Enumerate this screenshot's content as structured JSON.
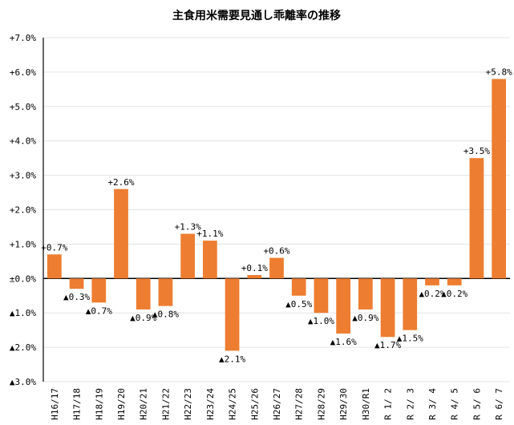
{
  "chart_data": {
    "type": "bar",
    "title": "主食用米需要見通し乖離率の推移",
    "xlabel": "",
    "ylabel": "",
    "ylim": [
      -3.0,
      7.0
    ],
    "yticks": [
      7,
      6,
      5,
      4,
      3,
      2,
      1,
      0,
      -1,
      -2,
      -3
    ],
    "ytick_labels": [
      "+7.0%",
      "+6.0%",
      "+5.0%",
      "+4.0%",
      "+3.0%",
      "+2.0%",
      "+1.0%",
      "±0.0%",
      "▲1.0%",
      "▲2.0%",
      "▲3.0%"
    ],
    "grid": true,
    "categories": [
      "H16/17",
      "H17/18",
      "H18/19",
      "H19/20",
      "H20/21",
      "H21/22",
      "H22/23",
      "H23/24",
      "H24/25",
      "H25/26",
      "H26/27",
      "H27/28",
      "H28/29",
      "H29/30",
      "H30/R1",
      "R 1/ 2",
      "R 2/ 3",
      "R 3/ 4",
      "R 4/ 5",
      "R 5/ 6",
      "R 6/ 7"
    ],
    "values": [
      0.7,
      -0.3,
      -0.7,
      2.6,
      -0.9,
      -0.8,
      1.3,
      1.1,
      -2.1,
      0.1,
      0.6,
      -0.5,
      -1.0,
      -1.6,
      -0.9,
      -1.7,
      -1.5,
      -0.2,
      -0.2,
      3.5,
      5.8
    ],
    "data_labels": [
      "+0.7%",
      "▲0.3%",
      "▲0.7%",
      "+2.6%",
      "▲0.9%",
      "▲0.8%",
      "+1.3%",
      "+1.1%",
      "▲2.1%",
      "+0.1%",
      "+0.6%",
      "▲0.5%",
      "▲1.0%",
      "▲1.6%",
      "▲0.9%",
      "▲1.7%",
      "▲1.5%",
      "▲0.2%",
      "▲0.2%",
      "+3.5%",
      "+5.8%"
    ],
    "bar_color": "#ED7D31"
  }
}
